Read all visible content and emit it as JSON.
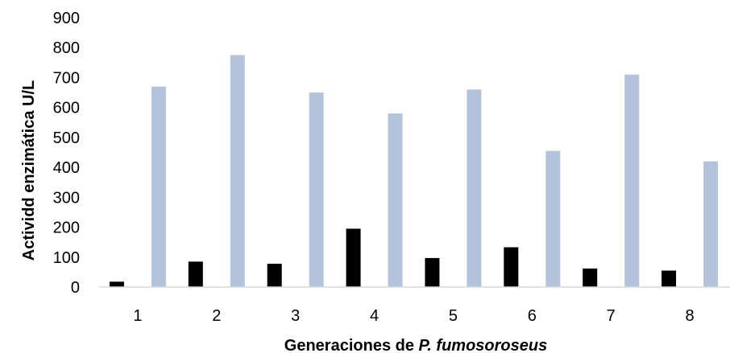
{
  "chart_data": {
    "type": "bar",
    "categories": [
      "1",
      "2",
      "3",
      "4",
      "5",
      "6",
      "7",
      "8"
    ],
    "series": [
      {
        "values": [
          18,
          85,
          78,
          195,
          97,
          133,
          62,
          55
        ],
        "color": "#000000"
      },
      {
        "values": [
          670,
          775,
          650,
          580,
          660,
          455,
          710,
          420
        ],
        "color": "#b4c3dc"
      }
    ],
    "xlabel": {
      "prefix": "Generaciones de ",
      "italic": "P. fumosoroseus"
    },
    "ylabel": "Actividd enzimática U/L",
    "ylim": [
      0,
      900
    ],
    "yticks": [
      0,
      100,
      200,
      300,
      400,
      500,
      600,
      700,
      800,
      900
    ],
    "grid": false,
    "axis_color": "#d9d9d9"
  }
}
